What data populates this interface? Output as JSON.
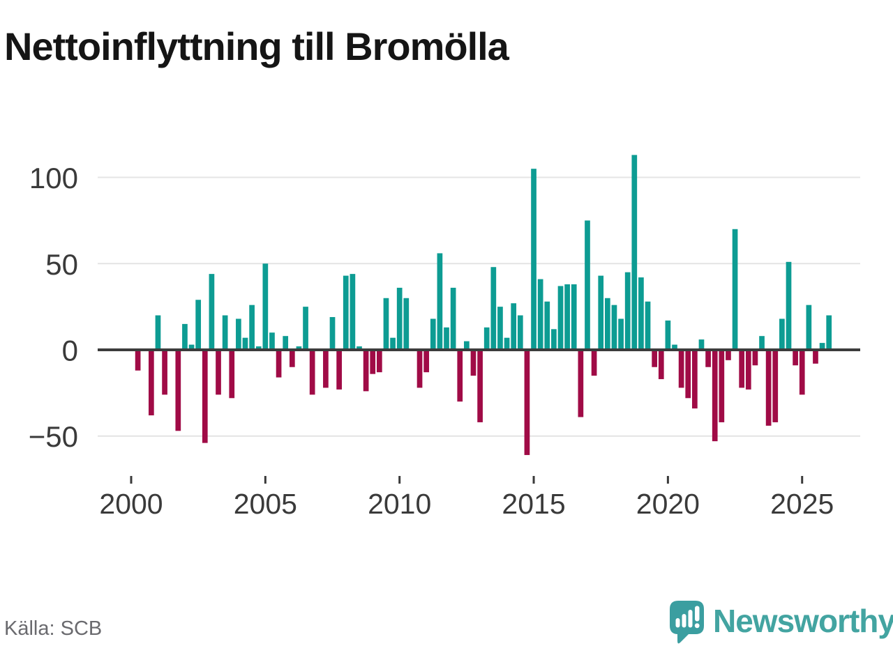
{
  "title": "Nettoinflyttning till Bromölla",
  "source": "Källa: SCB",
  "branding": {
    "name": "Newsworthy"
  },
  "colors": {
    "positive_bar": "#0d9c93",
    "negative_bar": "#a00b46",
    "gridline": "#e4e4e4",
    "zero_line": "#3c3c3c",
    "axis_text": "#3a3a3a",
    "title_text": "#151515",
    "source_text": "#6a6a6e",
    "brand_teal": "#43a4a1",
    "logo_mark": "#3b9ea0",
    "background": "#ffffff"
  },
  "chart_data": {
    "type": "bar",
    "title": "Nettoinflyttning till Bromölla",
    "frequency": "quarterly",
    "start_period": "2000 Q1",
    "end_period": "2026 Q1",
    "xlabel": "",
    "ylabel": "",
    "grid": "horizontal",
    "legend": "none",
    "ylim": [
      -70,
      120
    ],
    "y_ticks": [
      100,
      50,
      0,
      -50
    ],
    "x_ticks": [
      2000,
      2005,
      2010,
      2015,
      2020,
      2025
    ],
    "series": [
      {
        "name": "Nettoinflyttning",
        "values": [
          0,
          -12,
          0,
          -38,
          20,
          -26,
          0,
          -47,
          15,
          3,
          29,
          -54,
          44,
          -26,
          20,
          -28,
          18,
          7,
          26,
          2,
          50,
          10,
          -16,
          8,
          -10,
          2,
          25,
          -26,
          0,
          -22,
          19,
          -23,
          43,
          44,
          2,
          -24,
          -14,
          -13,
          30,
          7,
          36,
          30,
          0,
          -22,
          -13,
          18,
          56,
          13,
          36,
          -30,
          5,
          -15,
          -42,
          13,
          48,
          25,
          7,
          27,
          20,
          -61,
          105,
          41,
          28,
          12,
          37,
          38,
          38,
          -39,
          75,
          -15,
          43,
          30,
          26,
          18,
          45,
          113,
          42,
          28,
          -10,
          -17,
          17,
          3,
          -22,
          -28,
          -34,
          6,
          -10,
          -53,
          -42,
          -6,
          70,
          -22,
          -23,
          -9,
          8,
          -44,
          -42,
          18,
          51,
          -9,
          -26,
          26,
          -8,
          4,
          20
        ]
      }
    ]
  }
}
